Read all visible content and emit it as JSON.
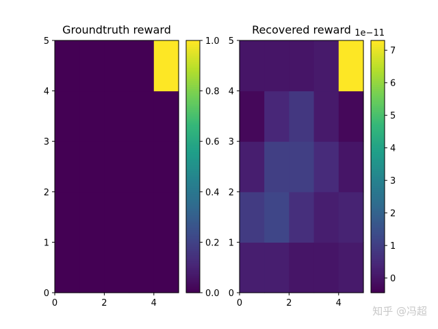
{
  "chart_data": [
    {
      "type": "heatmap",
      "title": "Groundtruth reward",
      "x_ticks": [
        "0",
        "2",
        "4"
      ],
      "y_ticks": [
        "0",
        "1",
        "2",
        "3",
        "4",
        "5"
      ],
      "xlim": [
        0,
        5
      ],
      "ylim": [
        0,
        5
      ],
      "colormap": "viridis",
      "vmin": 0.0,
      "vmax": 1.0,
      "colorbar_ticks": [
        "0.0",
        "0.2",
        "0.4",
        "0.6",
        "0.8",
        "1.0"
      ],
      "values": [
        [
          0,
          0,
          0,
          0,
          0
        ],
        [
          0,
          0,
          0,
          0,
          0
        ],
        [
          0,
          0,
          0,
          0,
          0
        ],
        [
          0,
          0,
          0,
          0,
          0
        ],
        [
          0,
          0,
          0,
          0,
          1.0
        ]
      ]
    },
    {
      "type": "heatmap",
      "title": "Recovered reward",
      "x_ticks": [
        "0",
        "2",
        "4"
      ],
      "y_ticks": [
        "0",
        "1",
        "2",
        "3",
        "4",
        "5"
      ],
      "xlim": [
        0,
        5
      ],
      "ylim": [
        0,
        5
      ],
      "colormap": "viridis",
      "vmin": -0.45,
      "vmax": 7.3,
      "colorbar_ticks": [
        "0",
        "1",
        "2",
        "3",
        "4",
        "5",
        "6",
        "7"
      ],
      "colorbar_offset": "1e−11",
      "values": [
        [
          0.2,
          0.2,
          0.0,
          0.0,
          0.1
        ],
        [
          0.9,
          1.2,
          0.6,
          0.2,
          0.3
        ],
        [
          0.2,
          1.0,
          1.0,
          0.5,
          0.0
        ],
        [
          -0.3,
          0.4,
          0.8,
          0.1,
          -0.3
        ],
        [
          0.0,
          0.0,
          0.0,
          0.1,
          7.3
        ]
      ]
    }
  ],
  "colors": {
    "viridis_stops": [
      "#440154",
      "#482878",
      "#3e4989",
      "#31688e",
      "#26828e",
      "#1f9e89",
      "#35b779",
      "#6ece58",
      "#b5de2b",
      "#fde725"
    ]
  },
  "watermark": "知乎 @冯超"
}
